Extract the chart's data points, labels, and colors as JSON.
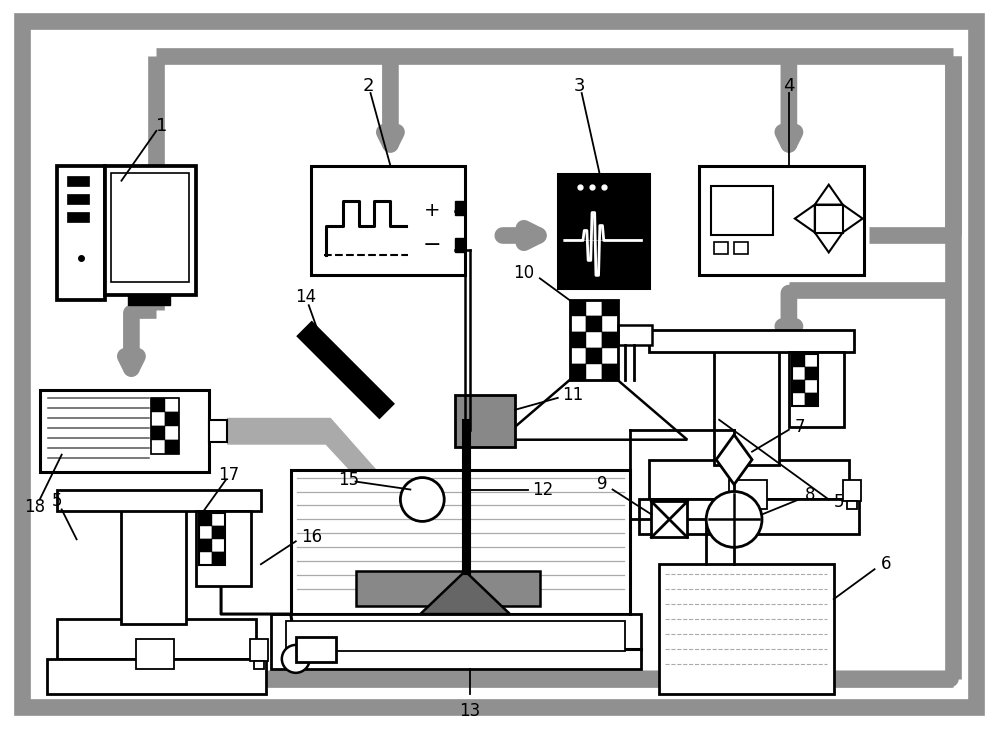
{
  "bg_color": "#ffffff",
  "gray": "#909090",
  "blk": "#000000",
  "figsize": [
    10.0,
    7.29
  ],
  "dpi": 100,
  "bus_lw": 12,
  "comp_lw": 2.2
}
